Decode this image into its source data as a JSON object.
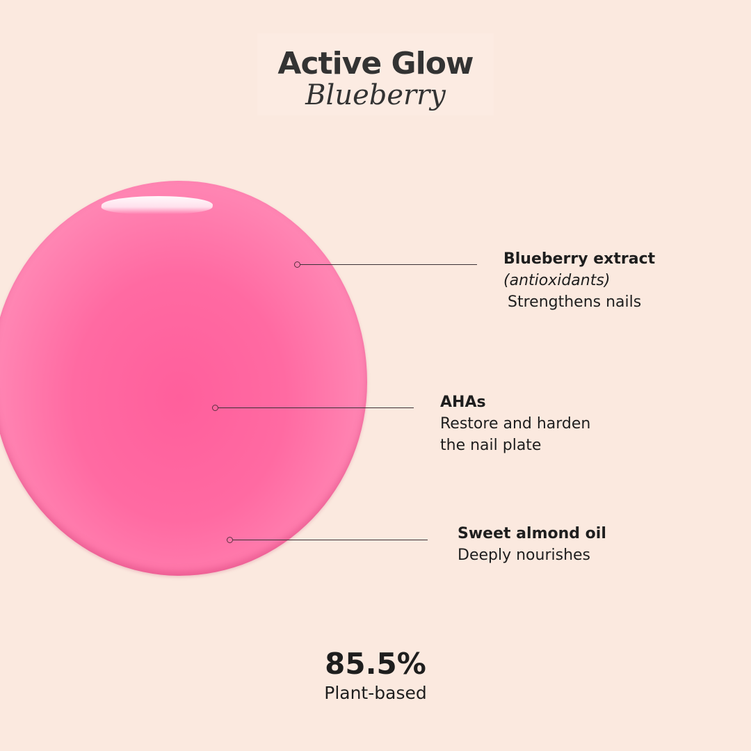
{
  "header": {
    "title": "Active Glow",
    "subtitle": "Blueberry"
  },
  "colors": {
    "background": "#fbe9df",
    "drop": "#ff6aa2",
    "text": "#1e1e1e"
  },
  "ingredients": [
    {
      "name": "Blueberry extract",
      "note": "(antioxidants)",
      "benefit": "Strengthens nails"
    },
    {
      "name": "AHAs",
      "benefit_lines": [
        "Restore and harden",
        "the nail plate"
      ]
    },
    {
      "name": "Sweet almond oil",
      "benefit": "Deeply nourishes"
    }
  ],
  "stat": {
    "value": "85.5%",
    "label": "Plant-based"
  }
}
